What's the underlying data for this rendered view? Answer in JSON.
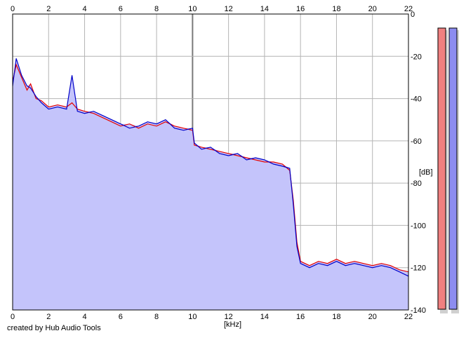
{
  "footer": {
    "credit": "created by Hub Audio Tools"
  },
  "chart_data": {
    "type": "area",
    "xlabel": "[kHz]",
    "ylabel": "[dB]",
    "xlim": [
      0,
      22
    ],
    "ylim": [
      -140,
      0
    ],
    "x_ticks": [
      0,
      2,
      4,
      6,
      8,
      10,
      12,
      14,
      16,
      18,
      20,
      22
    ],
    "y_ticks": [
      0,
      -20,
      -40,
      -60,
      -80,
      -100,
      -120,
      -140
    ],
    "grid": true,
    "colors": {
      "fill": "#c4c4fb",
      "left_channel": "#e60000",
      "right_channel": "#0000c8",
      "grid": "#b4b4b4",
      "meter_left": "#f08080",
      "meter_right": "#8c8cf0"
    },
    "series": [
      {
        "channel": "left",
        "x": [
          0,
          0.2,
          0.5,
          0.8,
          1.0,
          1.3,
          1.6,
          2.0,
          2.5,
          3.0,
          3.3,
          3.6,
          4.0,
          4.5,
          5.0,
          5.5,
          6.0,
          6.5,
          7.0,
          7.5,
          8.0,
          8.5,
          9.0,
          9.5,
          10.0,
          10.1,
          10.5,
          11.0,
          11.5,
          12.0,
          12.5,
          13.0,
          13.5,
          14.0,
          14.5,
          15.0,
          15.4,
          15.6,
          15.8,
          16.0,
          16.5,
          17.0,
          17.5,
          18.0,
          18.5,
          19.0,
          19.5,
          20.0,
          20.5,
          21.0,
          21.5,
          22.0
        ],
        "values": [
          -32,
          -24,
          -30,
          -36,
          -33,
          -40,
          -41,
          -44,
          -43,
          -44,
          -42,
          -45,
          -46,
          -47,
          -49,
          -51,
          -53,
          -52,
          -54,
          -52,
          -53,
          -51,
          -53,
          -54,
          -55,
          -62,
          -63,
          -64,
          -65,
          -66,
          -67,
          -68,
          -69,
          -70,
          -70,
          -71,
          -74,
          -88,
          -108,
          -117,
          -119,
          -117,
          -118,
          -116,
          -118,
          -117,
          -118,
          -119,
          -118,
          -119,
          -121,
          -122
        ]
      },
      {
        "channel": "right",
        "x": [
          0,
          0.2,
          0.5,
          0.8,
          1.0,
          1.3,
          1.6,
          2.0,
          2.5,
          3.0,
          3.3,
          3.6,
          4.0,
          4.5,
          5.0,
          5.5,
          6.0,
          6.5,
          7.0,
          7.5,
          8.0,
          8.5,
          9.0,
          9.5,
          10.0,
          10.1,
          10.5,
          11.0,
          11.5,
          12.0,
          12.5,
          13.0,
          13.5,
          14.0,
          14.5,
          15.0,
          15.4,
          15.6,
          15.8,
          16.0,
          16.5,
          17.0,
          17.5,
          18.0,
          18.5,
          19.0,
          19.5,
          20.0,
          20.5,
          21.0,
          21.5,
          22.0
        ],
        "values": [
          -34,
          -21,
          -29,
          -34,
          -35,
          -39,
          -42,
          -45,
          -44,
          -45,
          -29,
          -46,
          -47,
          -46,
          -48,
          -50,
          -52,
          -54,
          -53,
          -51,
          -52,
          -50,
          -54,
          -55,
          -54,
          -61,
          -64,
          -63,
          -66,
          -67,
          -66,
          -69,
          -68,
          -69,
          -71,
          -72,
          -73,
          -90,
          -110,
          -118,
          -120,
          -118,
          -119,
          -117,
          -119,
          -118,
          -119,
          -120,
          -119,
          -120,
          -122,
          -124
        ]
      }
    ]
  }
}
